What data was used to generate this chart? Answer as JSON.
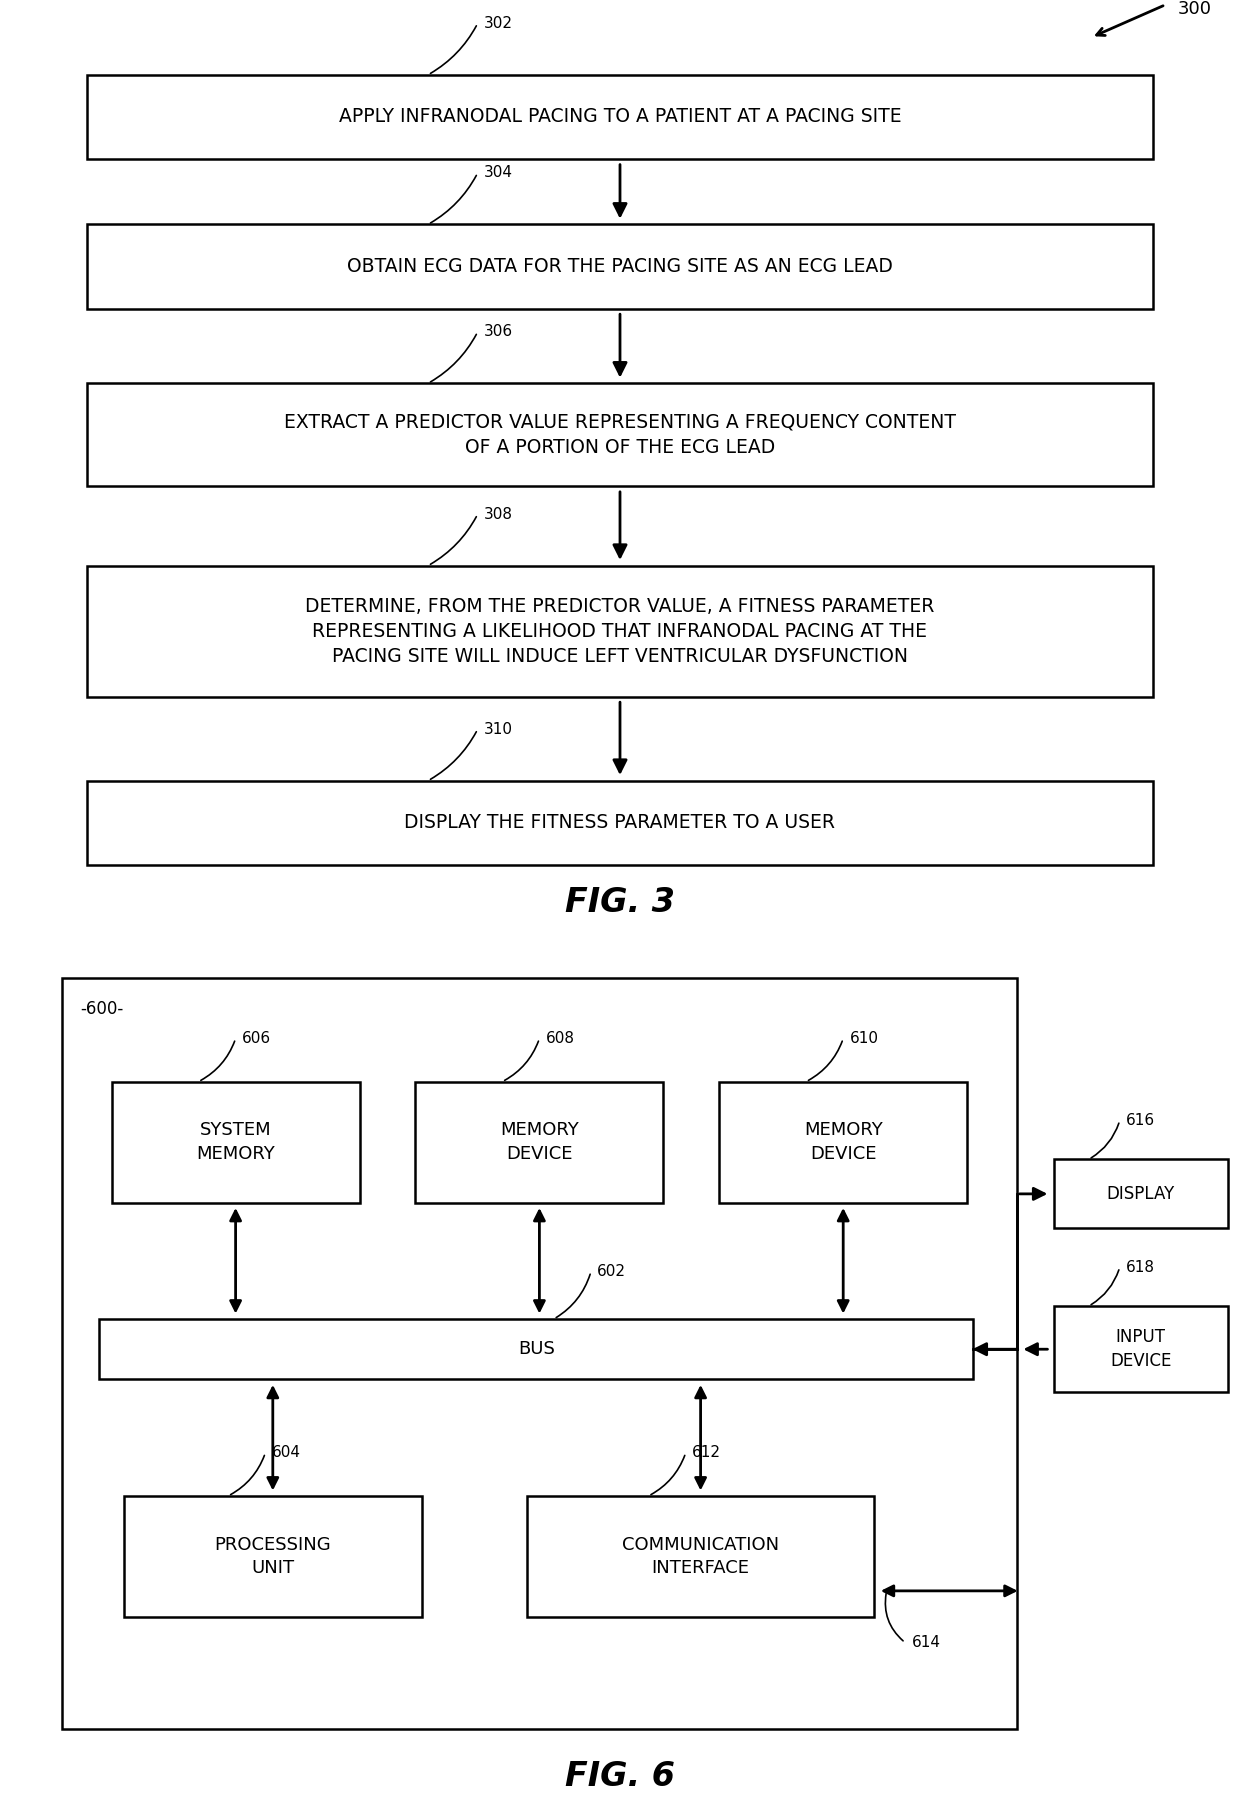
{
  "fig3": {
    "title": "FIG. 3",
    "ref_label": "300",
    "boxes": [
      {
        "label": "302",
        "text": "APPLY INFRANODAL PACING TO A PATIENT AT A PACING SITE",
        "nlines": 1
      },
      {
        "label": "304",
        "text": "OBTAIN ECG DATA FOR THE PACING SITE AS AN ECG LEAD",
        "nlines": 1
      },
      {
        "label": "306",
        "text": "EXTRACT A PREDICTOR VALUE REPRESENTING A FREQUENCY CONTENT\nOF A PORTION OF THE ECG LEAD",
        "nlines": 2
      },
      {
        "label": "308",
        "text": "DETERMINE, FROM THE PREDICTOR VALUE, A FITNESS PARAMETER\nREPRESENTING A LIKELIHOOD THAT INFRANODAL PACING AT THE\nPACING SITE WILL INDUCE LEFT VENTRICULAR DYSFUNCTION",
        "nlines": 3
      },
      {
        "label": "310",
        "text": "DISPLAY THE FITNESS PARAMETER TO A USER",
        "nlines": 1
      }
    ]
  },
  "fig6": {
    "title": "FIG. 6",
    "container_label": "-600-",
    "bus_label": "602",
    "bus_text": "BUS",
    "top_boxes": [
      {
        "label": "606",
        "text": "SYSTEM\nMEMORY"
      },
      {
        "label": "608",
        "text": "MEMORY\nDEVICE"
      },
      {
        "label": "610",
        "text": "MEMORY\nDEVICE"
      }
    ],
    "bottom_boxes": [
      {
        "label": "604",
        "text": "PROCESSING\nUNIT"
      },
      {
        "label": "612",
        "text": "COMMUNICATION\nINTERFACE"
      }
    ],
    "right_boxes": [
      {
        "label": "616",
        "text": "DISPLAY"
      },
      {
        "label": "618",
        "text": "INPUT\nDEVICE"
      }
    ],
    "ext_label": "614"
  },
  "bg_color": "#ffffff",
  "box_color": "#ffffff",
  "line_color": "#000000",
  "text_color": "#000000"
}
